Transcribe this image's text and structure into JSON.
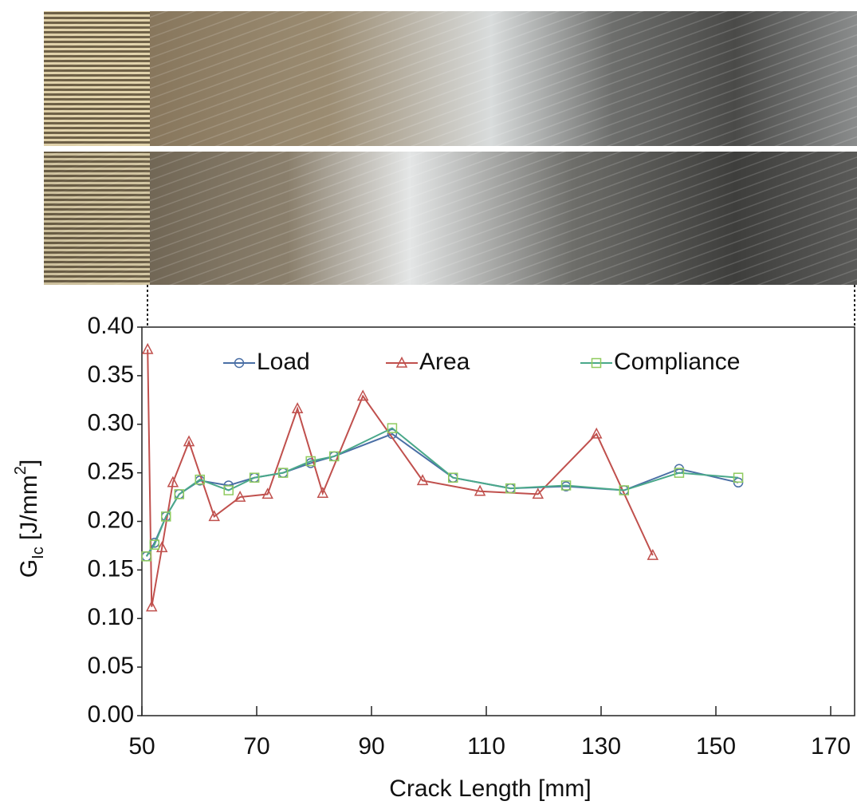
{
  "chart_data": {
    "type": "line",
    "x_label": "Crack Length [mm]",
    "y_label_parts": [
      "G",
      "Ic",
      " [J/mm",
      "2",
      "]"
    ],
    "xlim": [
      50,
      175
    ],
    "xticks": [
      50,
      70,
      90,
      110,
      130,
      150,
      170
    ],
    "ylim": [
      0,
      0.4
    ],
    "yticks": [
      {
        "value": 0,
        "label": "0.00"
      },
      {
        "value": 0.05,
        "label": "0.05"
      },
      {
        "value": 0.1,
        "label": "0.10"
      },
      {
        "value": 0.15,
        "label": "0.15"
      },
      {
        "value": 0.2,
        "label": "0.20"
      },
      {
        "value": 0.25,
        "label": "0.25"
      },
      {
        "value": 0.3,
        "label": "0.30"
      },
      {
        "value": 0.35,
        "label": "0.35"
      },
      {
        "value": 0.4,
        "label": "0.40"
      }
    ],
    "legend": "upper center",
    "series": [
      {
        "name": "Load",
        "color": "#4a6fa5",
        "marker": "circle",
        "x": [
          50.8,
          52.2,
          54.2,
          56.5,
          60.1,
          65.1,
          69.6,
          74.6,
          79.4,
          83.5,
          93.6,
          104.2,
          114.2,
          123.9,
          134,
          143.6,
          153.9
        ],
        "values": [
          0.164,
          0.178,
          0.205,
          0.228,
          0.242,
          0.237,
          0.245,
          0.25,
          0.26,
          0.267,
          0.29,
          0.245,
          0.234,
          0.236,
          0.232,
          0.254,
          0.24
        ]
      },
      {
        "name": "Area",
        "color": "#c0504d",
        "marker": "triangle",
        "x": [
          51,
          51.7,
          53.5,
          55.4,
          58.2,
          62.6,
          67.1,
          71.9,
          77.1,
          81.5,
          88.5,
          98.9,
          108.9,
          119,
          129.2,
          139
        ],
        "values": [
          0.377,
          0.112,
          0.173,
          0.24,
          0.282,
          0.205,
          0.225,
          0.228,
          0.316,
          0.229,
          0.329,
          0.242,
          0.231,
          0.228,
          0.29,
          0.165
        ]
      },
      {
        "name": "Compliance",
        "color": "#4aa88a",
        "marker_color": "#8fcb5e",
        "marker": "square",
        "x": [
          50.8,
          52.2,
          54.2,
          56.5,
          60.1,
          65.1,
          69.6,
          74.6,
          79.4,
          83.5,
          93.6,
          104.2,
          114.2,
          123.9,
          134,
          143.6,
          153.9
        ],
        "values": [
          0.164,
          0.176,
          0.205,
          0.228,
          0.243,
          0.232,
          0.245,
          0.25,
          0.262,
          0.267,
          0.296,
          0.245,
          0.234,
          0.237,
          0.232,
          0.25,
          0.245
        ]
      }
    ]
  }
}
